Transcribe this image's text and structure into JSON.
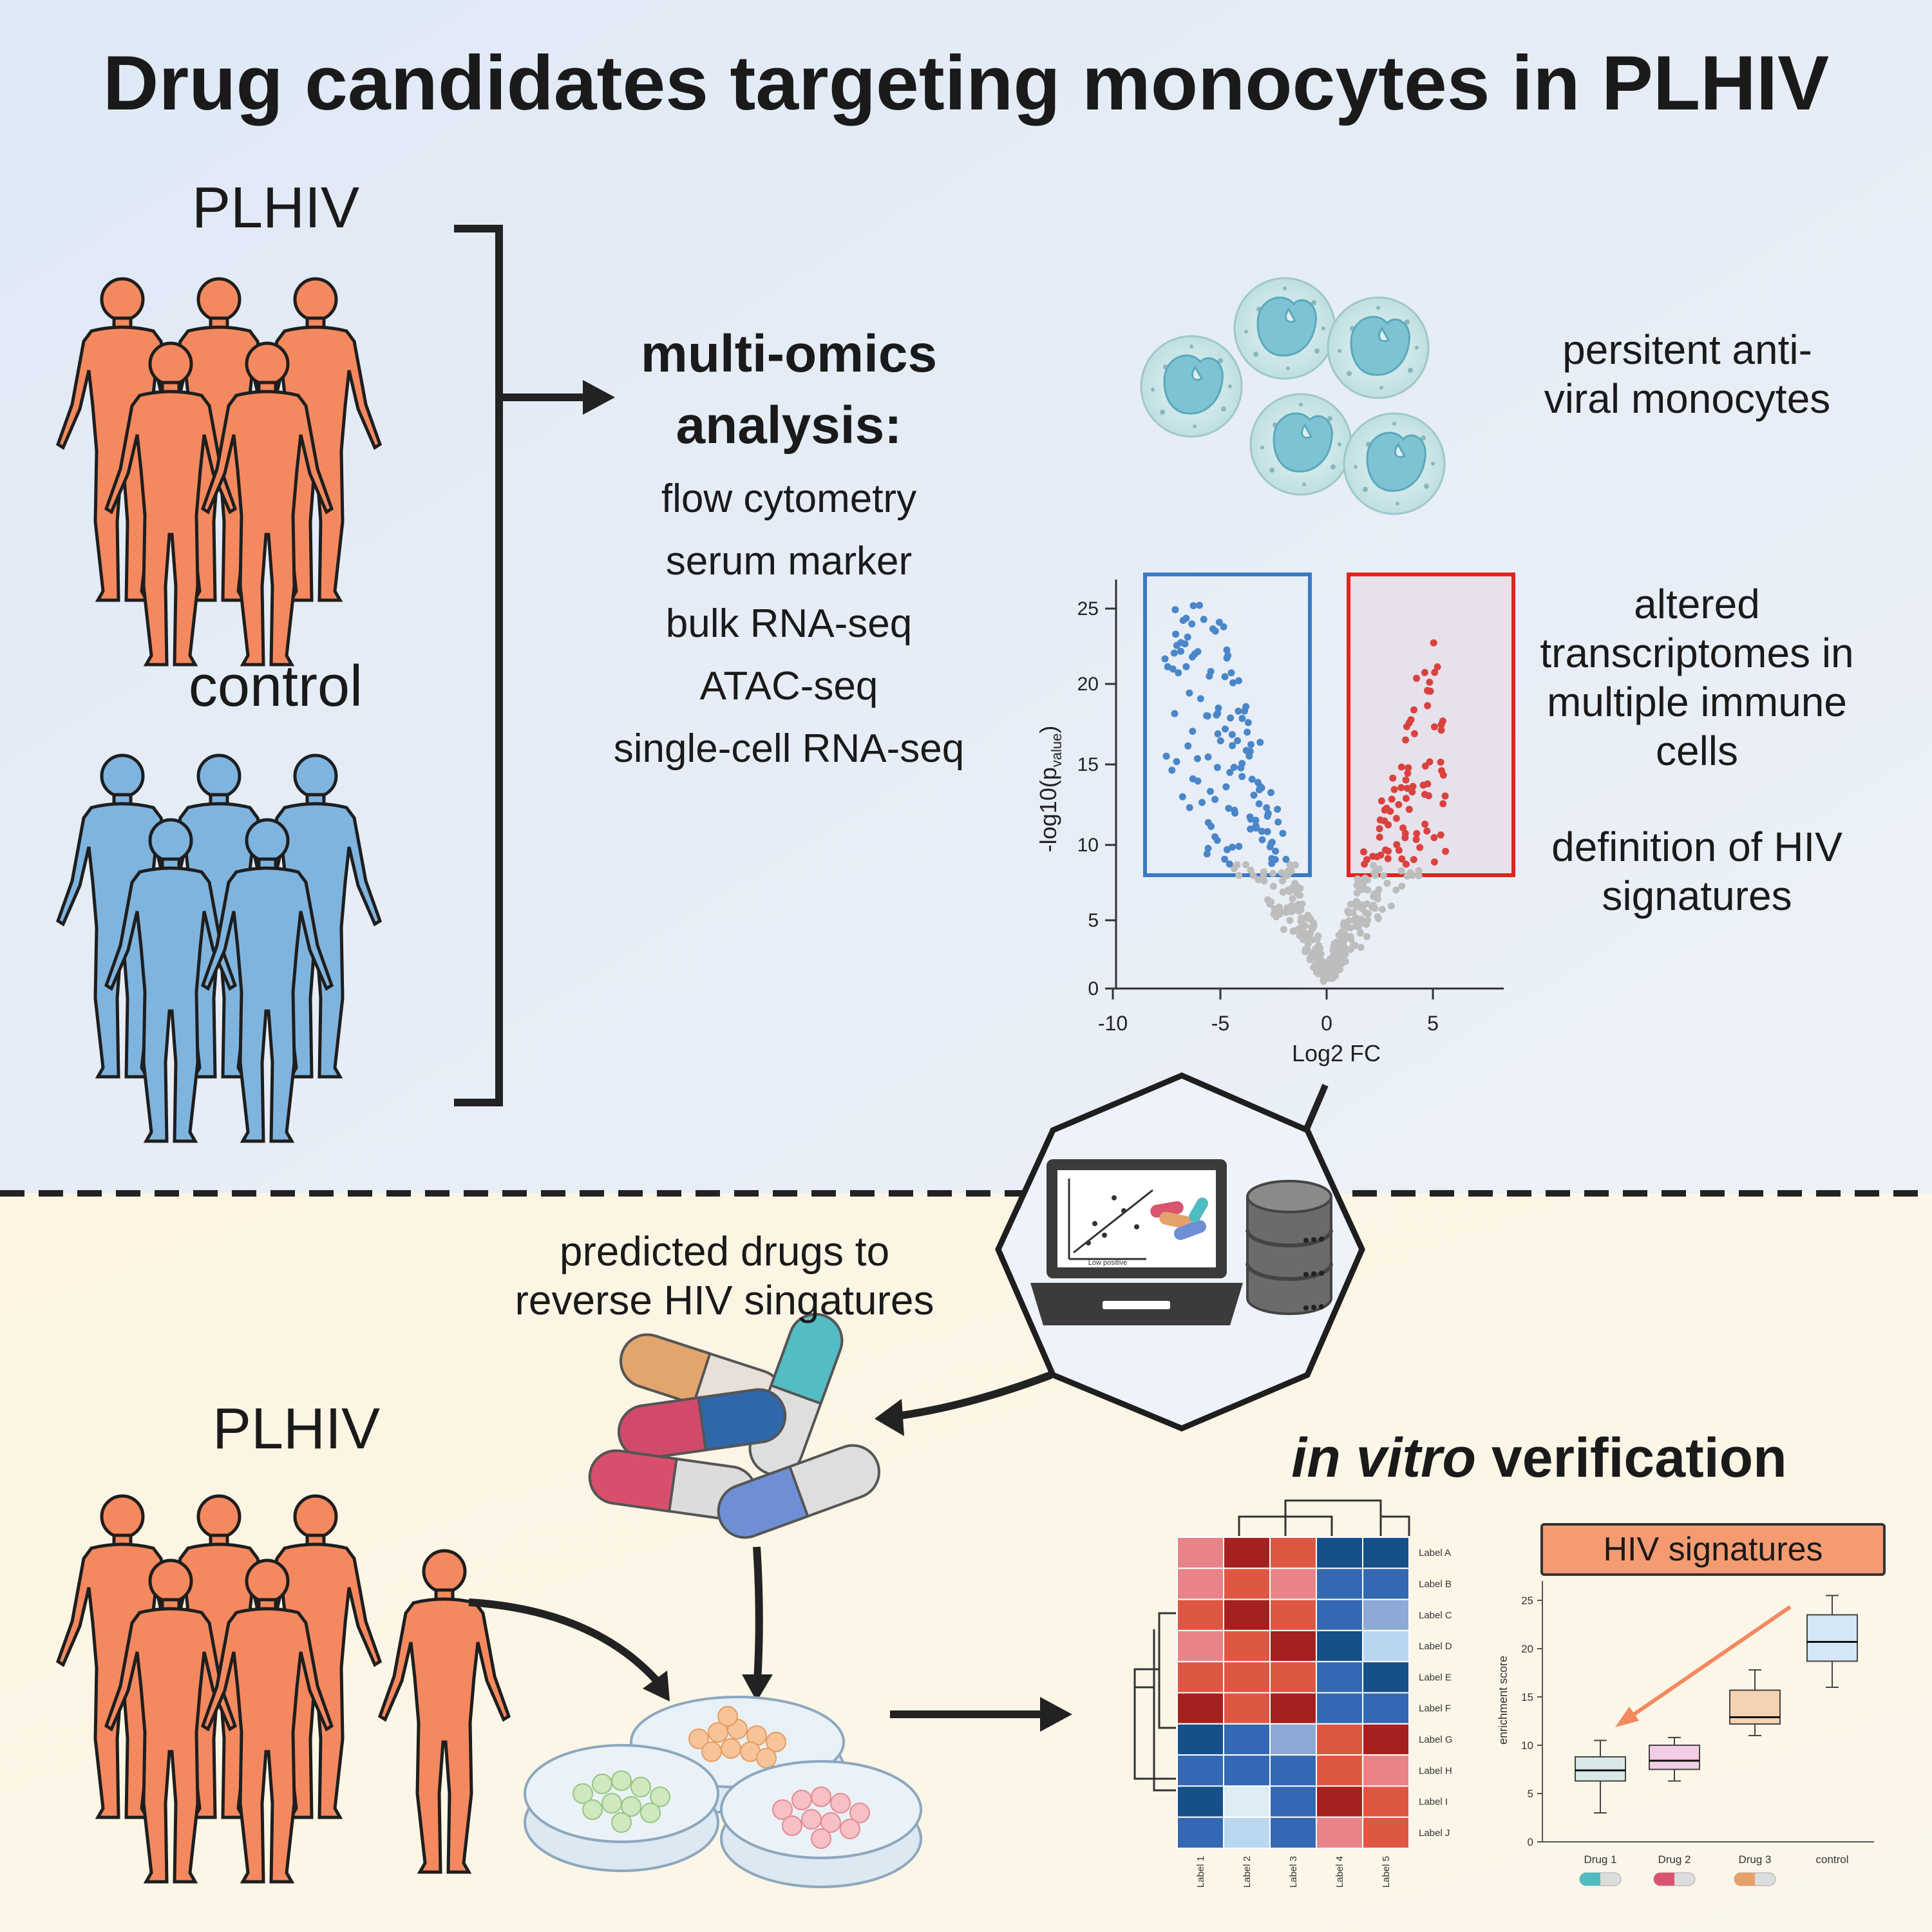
{
  "title": "Drug candidates targeting monocytes in PLHIV",
  "groups": {
    "plhiv": "PLHIV",
    "control": "control",
    "plhiv_bottom": "PLHIV"
  },
  "omics": {
    "heading_line1": "multi-omics",
    "heading_line2": "analysis:",
    "items": [
      "flow cytometry",
      "serum marker",
      "bulk RNA-seq",
      "ATAC-seq",
      "single-cell RNA-seq"
    ]
  },
  "findings": {
    "monocytes_line1": "persitent anti-",
    "monocytes_line2": "viral monocytes",
    "transcriptome_lines": [
      "altered",
      "transcriptomes in",
      "multiple immune",
      "cells"
    ],
    "signature_lines": [
      "definition of HIV",
      "signatures"
    ]
  },
  "prediction": {
    "line1": "predicted drugs to",
    "line2": "reverse HIV singatures"
  },
  "vitro": {
    "italic": "in vitro",
    "rest": " verification"
  },
  "laptop_chart_label": "Low positive",
  "colors": {
    "plhiv": "#f4895f",
    "control": "#7fb4df",
    "up": "#d9423f",
    "down": "#4a86c8",
    "ns": "#bdbdbd",
    "top_bg": "#e3edf8",
    "bottom_bg": "#fdf6e3"
  },
  "volcano": {
    "xlabel": "Log2 FC",
    "ylabel": "-log10(p",
    "ylabel_sub": "value",
    "ylabel_close": ")",
    "x_ticks": [
      "-10",
      "-5",
      "0",
      "5"
    ],
    "y_ticks": [
      "0",
      "5",
      "10",
      "15",
      "20",
      "25"
    ]
  },
  "heatmap": {
    "row_labels": [
      "Label A",
      "Label B",
      "Label C",
      "Label D",
      "Label E",
      "Label F",
      "Label G",
      "Label H",
      "Label I",
      "Label J"
    ],
    "col_labels": [
      "Label 1",
      "Label 2",
      "Label 3",
      "Label 4",
      "Label 5"
    ],
    "values": [
      [
        1,
        3,
        2,
        -3,
        -3
      ],
      [
        1,
        2,
        1,
        -2,
        -2
      ],
      [
        2,
        3,
        2,
        -2,
        -1
      ],
      [
        1,
        2,
        3,
        -3,
        -1
      ],
      [
        2,
        2,
        2,
        -2,
        -3
      ],
      [
        3,
        2,
        3,
        -2,
        -2
      ],
      [
        -3,
        -2,
        -1,
        2,
        3
      ],
      [
        -2,
        -2,
        -2,
        2,
        1
      ],
      [
        -3,
        -1,
        -2,
        3,
        2
      ],
      [
        -2,
        -1,
        -2,
        1,
        2
      ]
    ]
  },
  "chart_data": {
    "type": "box",
    "title": "HIV signatures",
    "ylabel": "enrichment score",
    "ylim": [
      0,
      27
    ],
    "y_ticks": [
      "0",
      "5",
      "10",
      "15",
      "20",
      "25"
    ],
    "categories": [
      "Drug 1",
      "Drug 2",
      "Drug 3",
      "control"
    ],
    "boxes": [
      {
        "min": 3,
        "q1": 6.3,
        "median": 7.4,
        "q3": 8.8,
        "max": 10.5
      },
      {
        "min": 6.3,
        "q1": 7.5,
        "median": 8.4,
        "q3": 10,
        "max": 10.8
      },
      {
        "min": 11,
        "q1": 12.2,
        "median": 12.9,
        "q3": 15.7,
        "max": 17.8
      },
      {
        "min": 16,
        "q1": 18.7,
        "median": 20.7,
        "q3": 23.5,
        "max": 25.5
      }
    ],
    "box_colors": [
      "#d6e9e6",
      "#f3cde6",
      "#f5d2b1",
      "#d5e6f5"
    ],
    "pill_colors": [
      "#4fbcc2",
      "#d9546f",
      "#e6a16b",
      "#d0d0d0"
    ]
  }
}
